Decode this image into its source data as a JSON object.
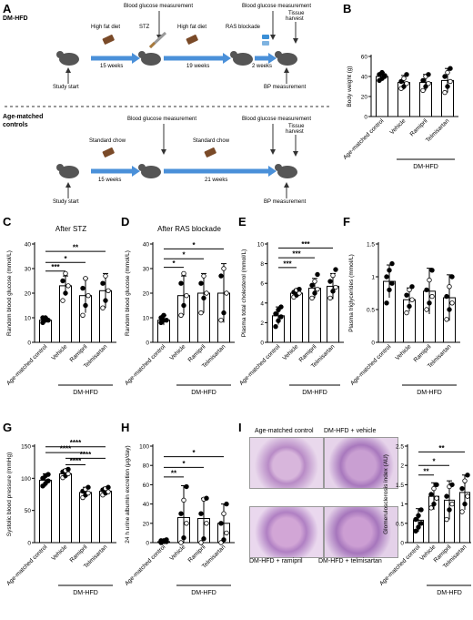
{
  "panels": {
    "A": {
      "label": "A",
      "dm_title": "DM-HFD",
      "ctrl_title_line1": "Age-matched",
      "ctrl_title_line2": "controls",
      "dm": {
        "blood_glucose_1": "Blood glucose measurement",
        "blood_glucose_2": "Blood glucose measurement",
        "high_fat_diet_1": "High fat diet",
        "stz": "STZ",
        "high_fat_diet_2": "High fat diet",
        "ras_blockade": "RAS blockade",
        "tissue_harvest_1": "Tissue",
        "tissue_harvest_2": "harvest",
        "weeks_15": "15 weeks",
        "weeks_19": "19 weeks",
        "weeks_2": "2 weeks",
        "study_start": "Study start",
        "bp_measurement": "BP measurement"
      },
      "ctrl": {
        "blood_glucose_1": "Blood glucose measurement",
        "blood_glucose_2": "Blood glucose measurement",
        "standard_chow_1": "Standard chow",
        "standard_chow_2": "Standard chow",
        "tissue_harvest_1": "Tissue",
        "tissue_harvest_2": "harvest",
        "weeks_15": "15 weeks",
        "weeks_21": "21 weeks",
        "study_start": "Study start",
        "bp_measurement": "BP measurement"
      }
    },
    "I_images": {
      "top_left": "Age-matched control",
      "top_right": "DM-HFD + vehicle",
      "bottom_left": "DM-HFD + ramipril",
      "bottom_right": "DM-HFD + telmisartan"
    }
  },
  "chart_data": [
    {
      "panel": "B",
      "type": "bar",
      "title": "",
      "ylabel": "Body weight (g)",
      "ylim": [
        0,
        60
      ],
      "yticks": [
        0,
        20,
        40,
        60
      ],
      "categories": [
        "Age-matched control",
        "Vehicle",
        "Ramipril",
        "Telmisartan"
      ],
      "group_label": "DM-HFD",
      "values": [
        40,
        34,
        34,
        36
      ],
      "errors": [
        4,
        7,
        8,
        12
      ],
      "points": [
        [
          36,
          38,
          40,
          42,
          44,
          41
        ],
        [
          28,
          30,
          33,
          35,
          38,
          42
        ],
        [
          26,
          30,
          33,
          36,
          40,
          42
        ],
        [
          24,
          30,
          35,
          40,
          44,
          48
        ]
      ],
      "marker": "o",
      "significance": []
    },
    {
      "panel": "C",
      "type": "bar",
      "title": "After STZ",
      "ylabel": "Random blood glucose (mmol/L)",
      "ylim": [
        0,
        40
      ],
      "yticks": [
        0,
        10,
        20,
        30,
        40
      ],
      "categories": [
        "Age-matched control",
        "Vehicle",
        "Ramipril",
        "Telmisartan"
      ],
      "group_label": "DM-HFD",
      "values": [
        9,
        23,
        19,
        21
      ],
      "errors": [
        1,
        4,
        7,
        7
      ],
      "points": [
        [
          8,
          9,
          9,
          10,
          10
        ],
        [
          17,
          20,
          23,
          25,
          28
        ],
        [
          11,
          15,
          19,
          22,
          26
        ],
        [
          14,
          17,
          21,
          24,
          27
        ]
      ],
      "marker": "o",
      "significance": [
        {
          "from": 0,
          "to": 1,
          "stars": "***",
          "level": 29
        },
        {
          "from": 0,
          "to": 2,
          "stars": "*",
          "level": 32.5
        },
        {
          "from": 0,
          "to": 3,
          "stars": "**",
          "level": 37
        }
      ]
    },
    {
      "panel": "D",
      "type": "bar",
      "title": "After RAS blockade",
      "ylabel": "Random blood glucose (mmol/L)",
      "ylim": [
        0,
        40
      ],
      "yticks": [
        0,
        10,
        20,
        30,
        40
      ],
      "categories": [
        "Age-matched control",
        "Vehicle",
        "Ramipril",
        "Telmisartan"
      ],
      "group_label": "DM-HFD",
      "values": [
        9,
        19,
        20,
        20
      ],
      "errors": [
        2,
        8,
        8,
        12
      ],
      "points": [
        [
          8,
          9,
          9,
          10,
          11
        ],
        [
          11,
          15,
          19,
          24,
          28
        ],
        [
          12,
          18,
          20,
          24,
          27
        ],
        [
          9,
          12,
          20,
          27,
          30
        ]
      ],
      "marker": "o",
      "significance": [
        {
          "from": 0,
          "to": 1,
          "stars": "*",
          "level": 30.5
        },
        {
          "from": 0,
          "to": 2,
          "stars": "*",
          "level": 34
        },
        {
          "from": 0,
          "to": 3,
          "stars": "*",
          "level": 38
        }
      ]
    },
    {
      "panel": "E",
      "type": "bar",
      "title": "",
      "ylabel": "Plasma total cholesterol (mmol/L)",
      "ylim": [
        0,
        10
      ],
      "yticks": [
        0,
        2,
        4,
        6,
        8,
        10
      ],
      "categories": [
        "Age-matched control",
        "Vehicle",
        "Ramipril",
        "Telmisartan"
      ],
      "group_label": "DM-HFD",
      "values": [
        2.7,
        5.0,
        5.5,
        5.7
      ],
      "errors": [
        0.9,
        0.4,
        1.0,
        1.3
      ],
      "points": [
        [
          1.6,
          2.2,
          2.6,
          2.9,
          3.3,
          3.6
        ],
        [
          4.6,
          4.8,
          5.0,
          5.1,
          5.3,
          5.4
        ],
        [
          4.5,
          5.0,
          5.4,
          5.8,
          6.2,
          6.9
        ],
        [
          4.5,
          5.2,
          5.6,
          6.2,
          6.8,
          7.4
        ]
      ],
      "marker": "o",
      "significance": [
        {
          "from": 0,
          "to": 1,
          "stars": "***",
          "level": 7.6
        },
        {
          "from": 0,
          "to": 2,
          "stars": "***",
          "level": 8.6
        },
        {
          "from": 0,
          "to": 3,
          "stars": "***",
          "level": 9.6
        }
      ]
    },
    {
      "panel": "F",
      "type": "bar",
      "title": "",
      "ylabel": "Plasma triglycerides (mmol/L)",
      "ylim": [
        0.0,
        1.5
      ],
      "yticks": [
        0.0,
        0.5,
        1.0,
        1.5
      ],
      "categories": [
        "Age-matched control",
        "Vehicle",
        "Ramipril",
        "Telmisartan"
      ],
      "group_label": "DM-HFD",
      "values": [
        0.93,
        0.65,
        0.78,
        0.68
      ],
      "errors": [
        0.25,
        0.18,
        0.35,
        0.35
      ],
      "points": [
        [
          0.6,
          0.8,
          0.9,
          1.0,
          1.1,
          1.2
        ],
        [
          0.45,
          0.55,
          0.65,
          0.72,
          0.8,
          0.85
        ],
        [
          0.5,
          0.6,
          0.7,
          0.8,
          0.95,
          1.1
        ],
        [
          0.35,
          0.5,
          0.6,
          0.7,
          0.85,
          1.0
        ]
      ],
      "marker": "o",
      "significance": []
    },
    {
      "panel": "G",
      "type": "bar",
      "title": "",
      "ylabel": "Systolic blood pressure (mmHg)",
      "ylim": [
        0,
        150
      ],
      "yticks": [
        0,
        50,
        100,
        150
      ],
      "categories": [
        "Age-matched control",
        "Vehicle",
        "Ramipril",
        "Telmisartan"
      ],
      "group_label": "DM-HFD",
      "values": [
        97,
        107,
        78,
        80
      ],
      "errors": [
        10,
        7,
        8,
        6
      ],
      "points": [
        [
          88,
          92,
          96,
          100,
          104,
          106
        ],
        [
          101,
          104,
          107,
          110,
          112,
          114
        ],
        [
          70,
          74,
          77,
          80,
          83,
          86
        ],
        [
          74,
          77,
          79,
          82,
          84,
          86
        ]
      ],
      "marker": "o",
      "significance": [
        {
          "from": 1,
          "to": 2,
          "stars": "****",
          "level": 121
        },
        {
          "from": 1,
          "to": 3,
          "stars": "****",
          "level": 131
        },
        {
          "from": 0,
          "to": 2,
          "stars": "****",
          "level": 140
        },
        {
          "from": 0,
          "to": 3,
          "stars": "****",
          "level": 149
        }
      ]
    },
    {
      "panel": "H",
      "type": "bar",
      "title": "",
      "ylabel": "24 h urine albumin excretion (μg/day)",
      "ylim": [
        0,
        100
      ],
      "yticks": [
        0,
        20,
        40,
        60,
        80,
        100
      ],
      "categories": [
        "Age-matched control",
        "Vehicle",
        "Ramipril",
        "Telmisartan"
      ],
      "group_label": "DM-HFD",
      "values": [
        1,
        26,
        25,
        20
      ],
      "errors": [
        1,
        33,
        21,
        20
      ],
      "points": [
        [
          0,
          1,
          1,
          2,
          2,
          3
        ],
        [
          0,
          5,
          20,
          30,
          44,
          58
        ],
        [
          0,
          4,
          20,
          30,
          45,
          46
        ],
        [
          0,
          3,
          10,
          20,
          30,
          40
        ]
      ],
      "marker": "o",
      "significance": [
        {
          "from": 0,
          "to": 1,
          "stars": "**",
          "level": 68
        },
        {
          "from": 0,
          "to": 2,
          "stars": "*",
          "level": 78
        },
        {
          "from": 0,
          "to": 3,
          "stars": "*",
          "level": 89
        }
      ]
    },
    {
      "panel": "I",
      "type": "bar",
      "title": "",
      "ylabel": "Glomerulosclerosis index (AU)",
      "ylim": [
        0.0,
        2.5
      ],
      "yticks": [
        0.0,
        0.5,
        1.0,
        1.5,
        2.0,
        2.5
      ],
      "categories": [
        "Age-matched control",
        "Vehicle",
        "Ramipril",
        "Telmisartan"
      ],
      "group_label": "DM-HFD",
      "values": [
        0.58,
        1.2,
        1.1,
        1.3
      ],
      "errors": [
        0.3,
        0.35,
        0.5,
        0.45
      ],
      "points": [
        [
          0.3,
          0.4,
          0.5,
          0.6,
          0.7,
          0.85
        ],
        [
          0.9,
          1.0,
          1.15,
          1.25,
          1.4,
          1.5
        ],
        [
          0.6,
          0.85,
          1.0,
          1.2,
          1.45,
          1.5
        ],
        [
          0.8,
          1.0,
          1.2,
          1.4,
          1.6,
          1.75
        ]
      ],
      "marker": "o",
      "significance": [
        {
          "from": 0,
          "to": 1,
          "stars": "**",
          "level": 1.75
        },
        {
          "from": 0,
          "to": 2,
          "stars": "*",
          "level": 2.0
        },
        {
          "from": 0,
          "to": 3,
          "stars": "**",
          "level": 2.35
        }
      ]
    }
  ]
}
